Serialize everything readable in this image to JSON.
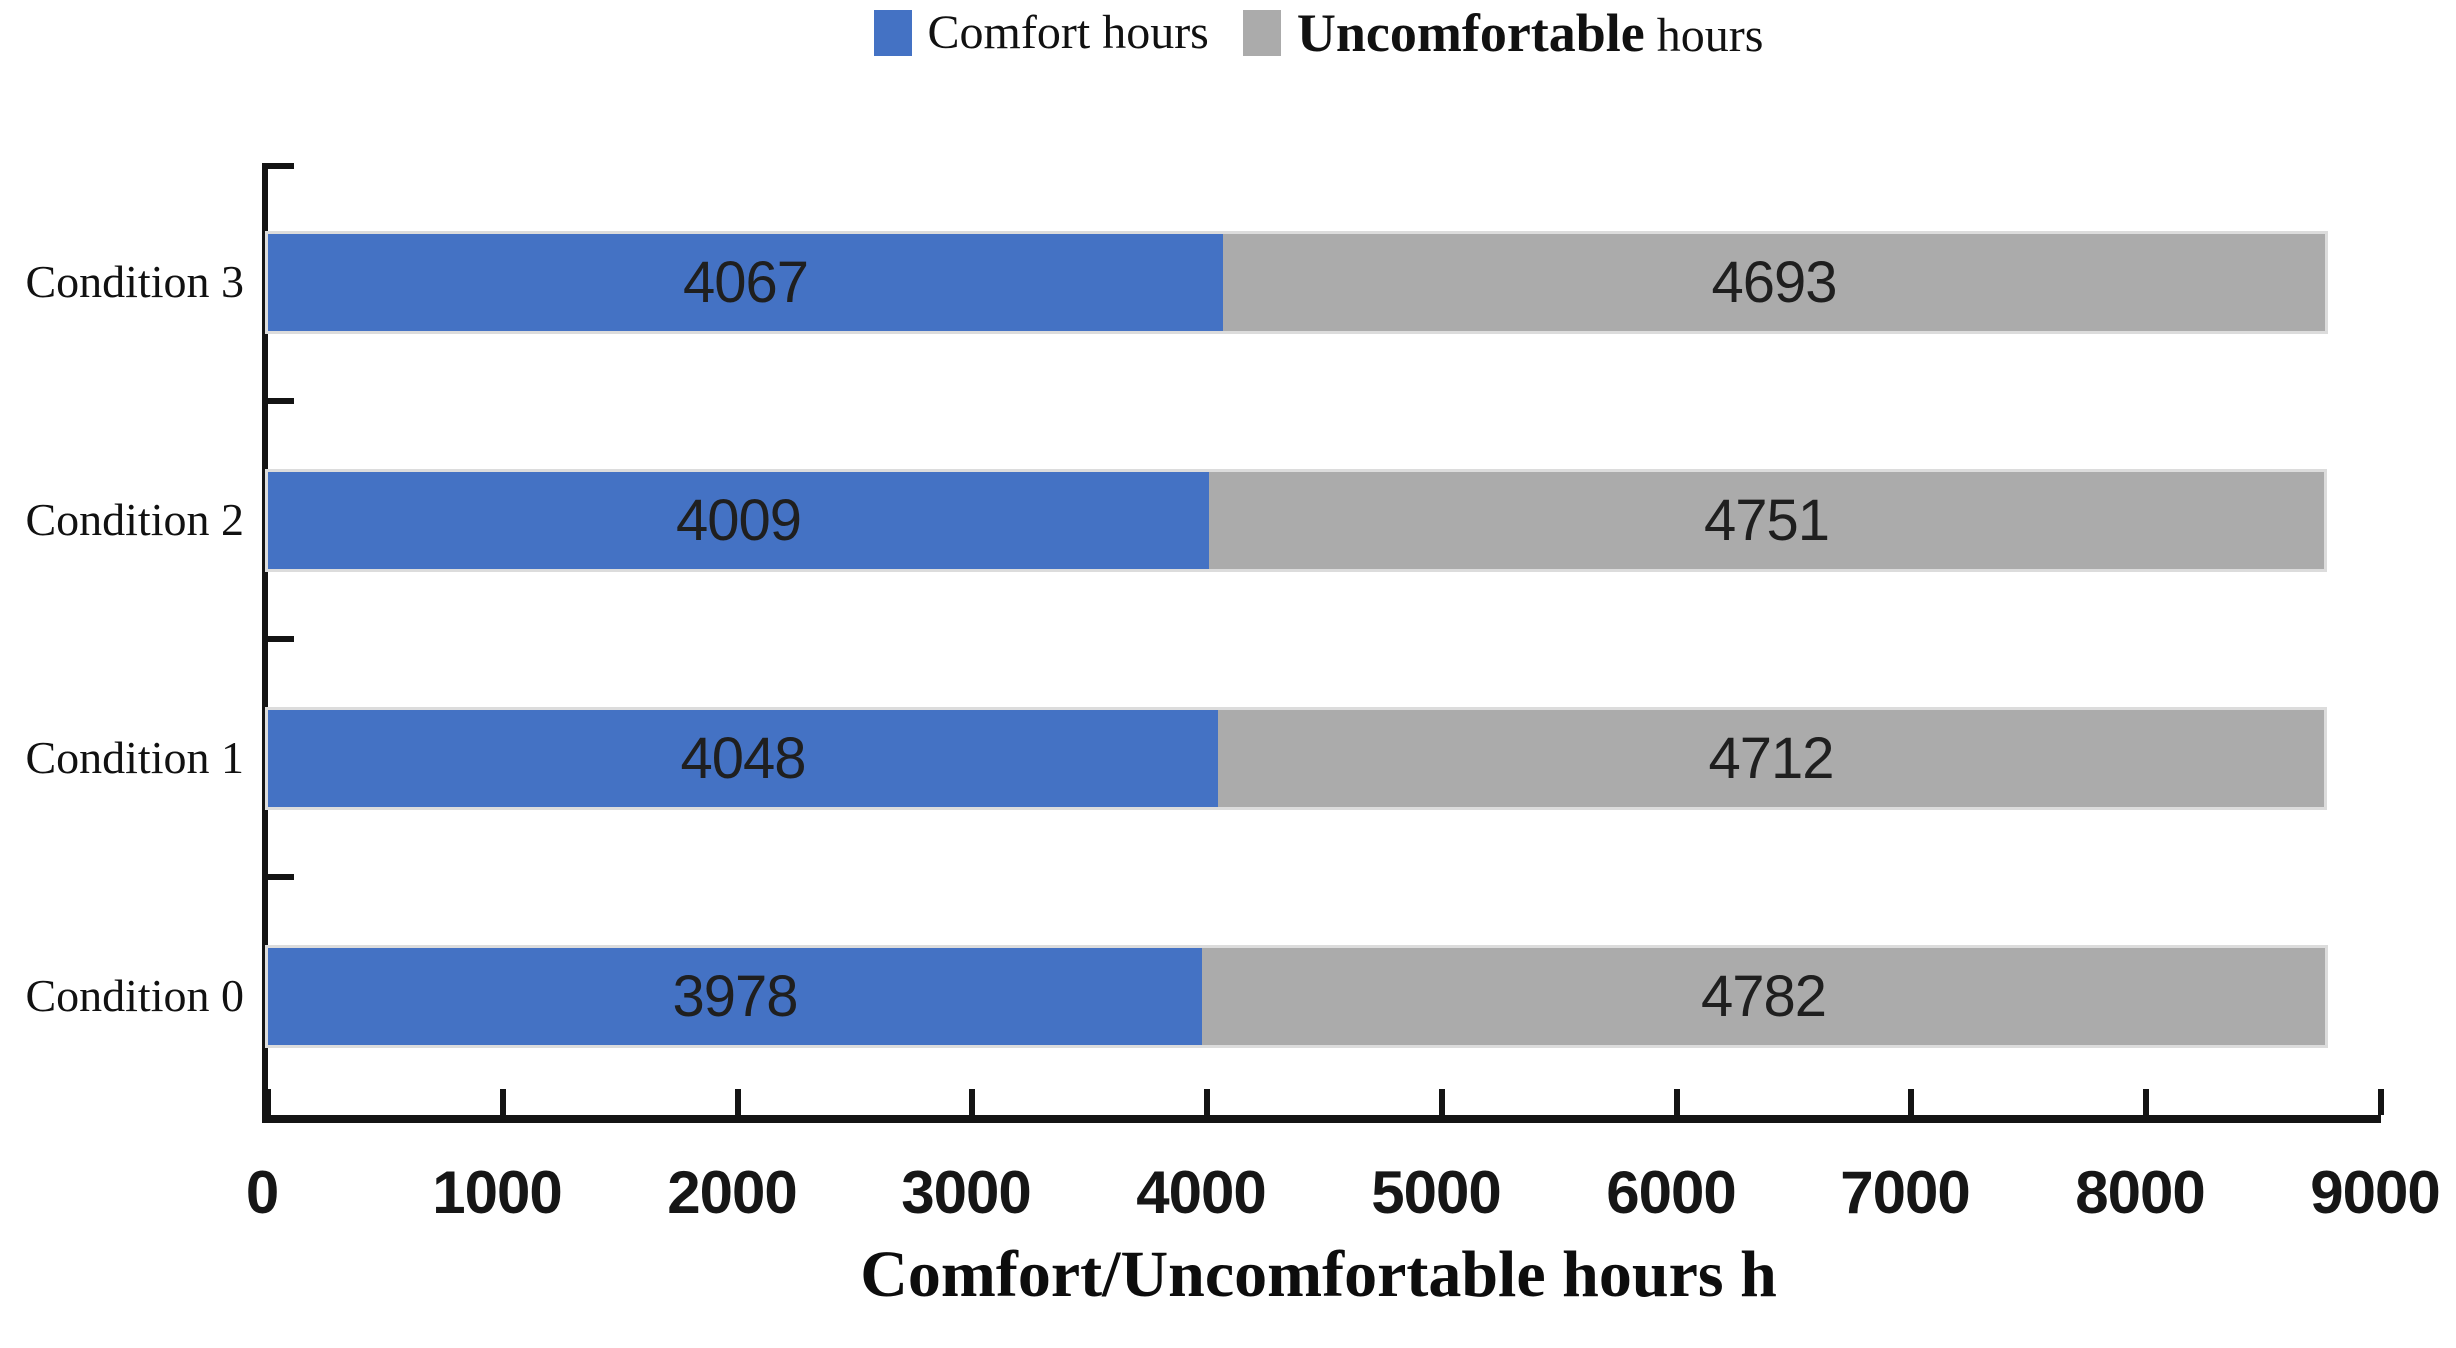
{
  "chart_data": {
    "type": "bar",
    "orientation": "horizontal",
    "stacked": true,
    "title": "",
    "xlabel": "Comfort/Uncomfortable hours h",
    "ylabel": "",
    "xlim": [
      0,
      9000
    ],
    "xticks": [
      0,
      1000,
      2000,
      3000,
      4000,
      5000,
      6000,
      7000,
      8000,
      9000
    ],
    "x_tick_labels": [
      "0",
      "1000",
      "2000",
      "3000",
      "4000",
      "5000",
      "6000",
      "7000",
      "8000",
      "9000"
    ],
    "categories_top_to_bottom": [
      "Condition 3",
      "Condition 2",
      "Condition 1",
      "Condition 0"
    ],
    "series": [
      {
        "name": "Comfort hours",
        "color": "#4472C4",
        "values_top_to_bottom": [
          4067,
          4009,
          4048,
          3978
        ]
      },
      {
        "name": "Uncomfortable hours",
        "color": "#ABABAB",
        "values_top_to_bottom": [
          4693,
          4751,
          4712,
          4782
        ]
      }
    ],
    "bar_value_labels_shown": true,
    "grid": false,
    "legend_position": "top-center"
  },
  "legend": {
    "items": [
      {
        "swatch_color": "#4472C4",
        "parts": [
          {
            "text": "Comfort hours",
            "bold": false
          }
        ]
      },
      {
        "swatch_color": "#ABABAB",
        "parts": [
          {
            "text": "Uncomfortable",
            "bold": true
          },
          {
            "text": " hours",
            "bold": false
          }
        ]
      }
    ]
  },
  "colors": {
    "comfort_blue": "#4472C4",
    "uncomfortable_gray": "#ABABAB",
    "axis_black": "#141414",
    "background": "#ffffff"
  }
}
